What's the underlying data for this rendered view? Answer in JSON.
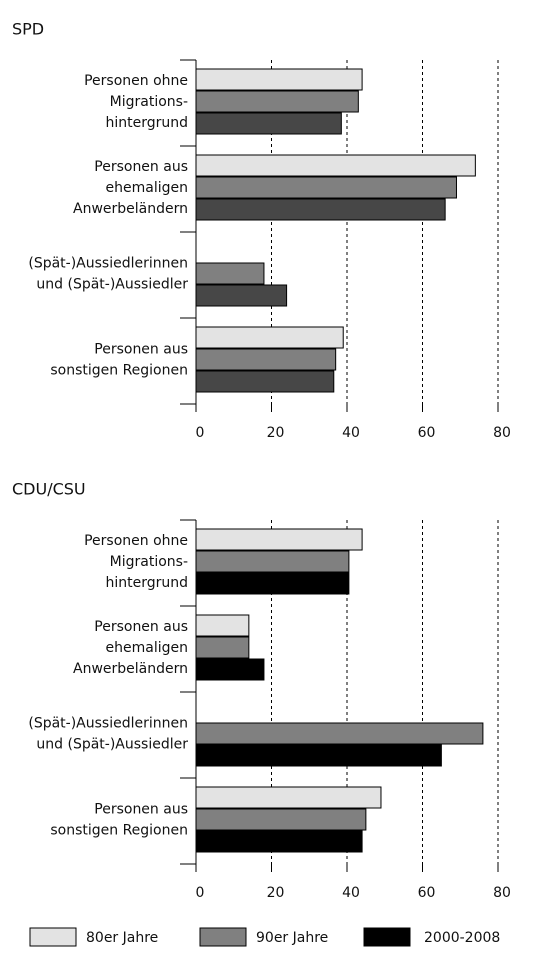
{
  "chart_data": [
    {
      "type": "bar",
      "title": "SPD",
      "categories": [
        [
          "Personen ohne",
          "Migrations-",
          "hintergrund"
        ],
        [
          "Personen aus",
          "ehemaligen",
          "Anwerbeländern"
        ],
        [
          "(Spät-)Aussiedlerinnen",
          "und (Spät-)Aussiedler"
        ],
        [
          "Personen aus",
          "sonstigen Regionen"
        ]
      ],
      "series": [
        {
          "color": "#e3e3e3",
          "values": [
            44,
            74,
            null,
            39
          ]
        },
        {
          "color": "#808080",
          "values": [
            43,
            69,
            18,
            37
          ]
        },
        {
          "color": "#474747",
          "values": [
            38.5,
            66,
            24,
            36.5
          ]
        }
      ],
      "xlim": [
        0,
        80
      ],
      "xticks": [
        0,
        20,
        40,
        60,
        80
      ],
      "grid": true
    },
    {
      "type": "bar",
      "title": "CDU/CSU",
      "categories": [
        [
          "Personen ohne",
          "Migrations-",
          "hintergrund"
        ],
        [
          "Personen aus",
          "ehemaligen",
          "Anwerbeländern"
        ],
        [
          "(Spät-)Aussiedlerinnen",
          "und (Spät-)Aussiedler"
        ],
        [
          "Personen aus",
          "sonstigen Regionen"
        ]
      ],
      "series": [
        {
          "color": "#e3e3e3",
          "values": [
            44,
            14,
            null,
            49
          ]
        },
        {
          "color": "#808080",
          "values": [
            40.5,
            14,
            76,
            45
          ]
        },
        {
          "color": "#000000",
          "values": [
            40.5,
            18,
            65,
            44
          ]
        }
      ],
      "xlim": [
        0,
        80
      ],
      "xticks": [
        0,
        20,
        40,
        60,
        80
      ],
      "grid": true
    }
  ],
  "legend": [
    {
      "name": "80er Jahre",
      "color": "#e3e3e3"
    },
    {
      "name": "90er Jahre",
      "color": "#808080"
    },
    {
      "name": "2000-2008",
      "color": "#000000"
    }
  ]
}
